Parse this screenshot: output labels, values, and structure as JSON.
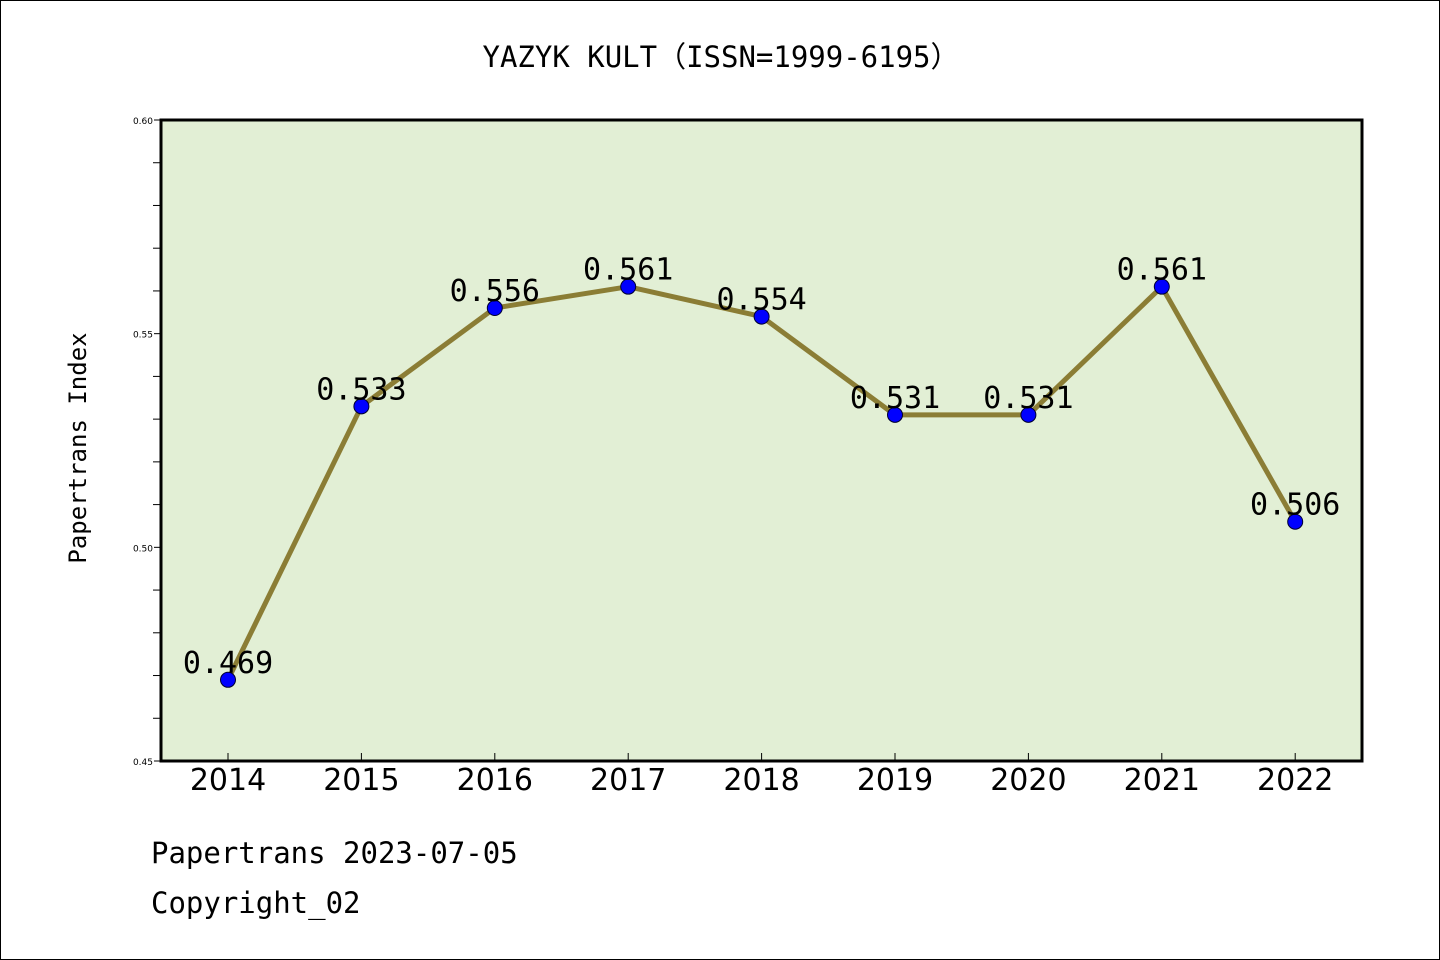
{
  "chart_data": {
    "type": "line",
    "title": "YAZYK KULT（ISSN=1999-6195）",
    "xlabel": "",
    "ylabel": "Papertrans Index",
    "categories": [
      "2014",
      "2015",
      "2016",
      "2017",
      "2018",
      "2019",
      "2020",
      "2021",
      "2022"
    ],
    "series": [
      {
        "values": [
          0.469,
          0.533,
          0.556,
          0.561,
          0.554,
          0.531,
          0.531,
          0.561,
          0.506
        ],
        "data_labels": [
          "0.469",
          "0.533",
          "0.556",
          "0.561",
          "0.554",
          "0.531",
          "0.531",
          "0.561",
          "0.506"
        ]
      }
    ],
    "ylim": [
      0.45,
      0.6
    ],
    "yticks": [
      "0.45",
      "0.50",
      "0.55",
      "0.60"
    ],
    "grid": false,
    "legend": "none",
    "colors": {
      "plot_background": "#e2efd5",
      "line": "#8b7d35",
      "marker": "#0000ff"
    }
  },
  "footer": {
    "date_line": "Papertrans 2023-07-05",
    "copyright_line": "Copyright_02"
  }
}
